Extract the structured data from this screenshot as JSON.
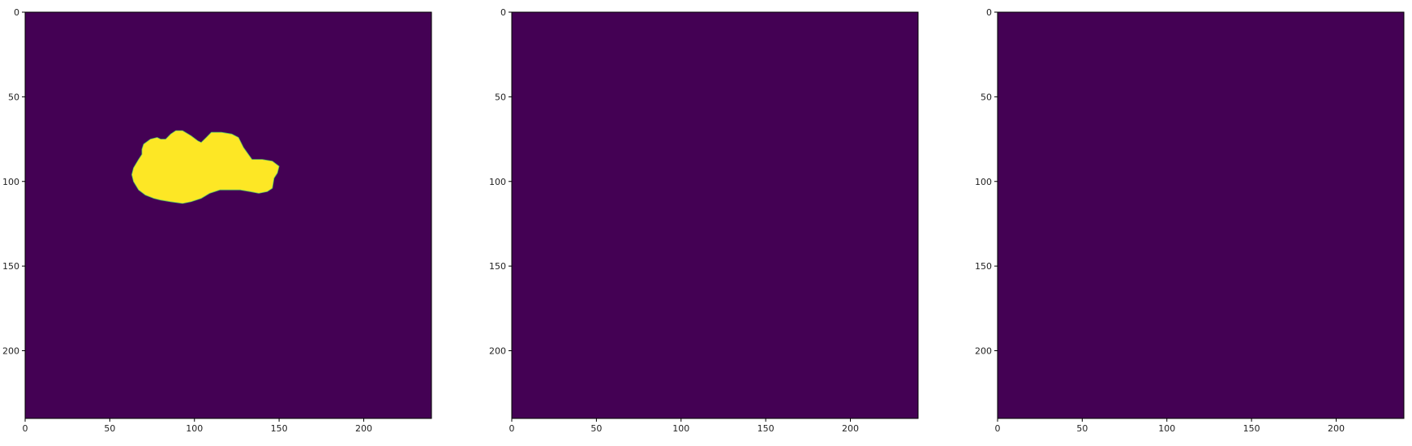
{
  "chart_data": [
    {
      "type": "heatmap",
      "colormap": "viridis",
      "colors": {
        "background": "#440154",
        "mask": "#fde725"
      },
      "xlim": [
        0,
        240
      ],
      "ylim": [
        240,
        0
      ],
      "xticks": [
        0,
        50,
        100,
        150,
        200
      ],
      "yticks": [
        0,
        50,
        100,
        150,
        200
      ],
      "xtick_labels": [
        "0",
        "50",
        "100",
        "150",
        "200"
      ],
      "ytick_labels": [
        "0",
        "50",
        "100",
        "150",
        "200"
      ],
      "title": "",
      "xlabel": "",
      "ylabel": "",
      "mask_outline": [
        [
          64,
          100
        ],
        [
          63,
          96
        ],
        [
          64,
          92
        ],
        [
          67,
          87
        ],
        [
          69,
          84
        ],
        [
          69,
          81
        ],
        [
          70,
          78
        ],
        [
          74,
          75
        ],
        [
          78,
          74
        ],
        [
          80,
          75
        ],
        [
          83,
          75
        ],
        [
          86,
          72
        ],
        [
          89,
          70
        ],
        [
          93,
          70
        ],
        [
          98,
          73
        ],
        [
          102,
          76
        ],
        [
          104,
          77
        ],
        [
          107,
          74
        ],
        [
          110,
          71
        ],
        [
          116,
          71
        ],
        [
          122,
          72
        ],
        [
          126,
          74
        ],
        [
          129,
          80
        ],
        [
          134,
          87
        ],
        [
          140,
          87
        ],
        [
          146,
          88
        ],
        [
          150,
          91
        ],
        [
          149,
          95
        ],
        [
          147,
          98
        ],
        [
          146,
          104
        ],
        [
          143,
          106
        ],
        [
          138,
          107
        ],
        [
          133,
          106
        ],
        [
          127,
          105
        ],
        [
          121,
          105
        ],
        [
          115,
          105
        ],
        [
          109,
          107
        ],
        [
          104,
          110
        ],
        [
          98,
          112
        ],
        [
          93,
          113
        ],
        [
          86,
          112
        ],
        [
          80,
          111
        ],
        [
          76,
          110
        ],
        [
          71,
          108
        ],
        [
          67,
          105
        ]
      ]
    },
    {
      "type": "heatmap",
      "colormap": "viridis",
      "colors": {
        "background": "#440154"
      },
      "xlim": [
        0,
        240
      ],
      "ylim": [
        240,
        0
      ],
      "xticks": [
        0,
        50,
        100,
        150,
        200
      ],
      "yticks": [
        0,
        50,
        100,
        150,
        200
      ],
      "xtick_labels": [
        "0",
        "50",
        "100",
        "150",
        "200"
      ],
      "ytick_labels": [
        "0",
        "50",
        "100",
        "150",
        "200"
      ],
      "title": "",
      "xlabel": "",
      "ylabel": ""
    },
    {
      "type": "heatmap",
      "colormap": "viridis",
      "colors": {
        "background": "#440154"
      },
      "xlim": [
        0,
        240
      ],
      "ylim": [
        240,
        0
      ],
      "xticks": [
        0,
        50,
        100,
        150,
        200
      ],
      "yticks": [
        0,
        50,
        100,
        150,
        200
      ],
      "xtick_labels": [
        "0",
        "50",
        "100",
        "150",
        "200"
      ],
      "ytick_labels": [
        "0",
        "50",
        "100",
        "150",
        "200"
      ],
      "title": "",
      "xlabel": "",
      "ylabel": ""
    }
  ]
}
